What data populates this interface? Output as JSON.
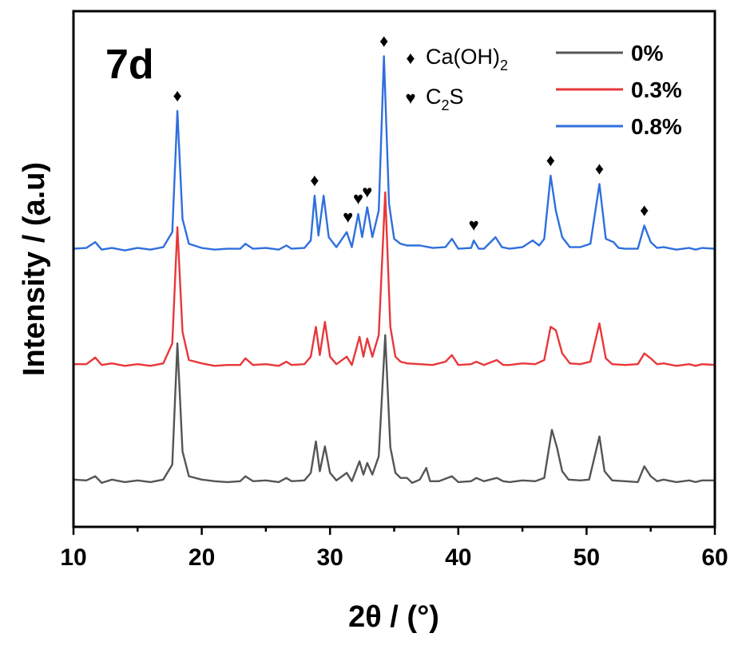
{
  "chart_data": {
    "type": "line",
    "title": "7d",
    "xlabel": "2θ / (°)",
    "ylabel": "Intensity / (a.u)",
    "xlim": [
      10,
      60
    ],
    "xticks": [
      10,
      20,
      30,
      40,
      50,
      60
    ],
    "grid": false,
    "yticks_visible": false,
    "legend_position": "top-right",
    "series": [
      {
        "name": "0%",
        "color": "#555555",
        "offset": 0,
        "points": [
          [
            10,
            6
          ],
          [
            11,
            5
          ],
          [
            11.7,
            10
          ],
          [
            12.2,
            2
          ],
          [
            13,
            6
          ],
          [
            14,
            3
          ],
          [
            15,
            5
          ],
          [
            16,
            3
          ],
          [
            17,
            6
          ],
          [
            17.7,
            24
          ],
          [
            18.1,
            170
          ],
          [
            18.5,
            40
          ],
          [
            19,
            10
          ],
          [
            20,
            6
          ],
          [
            21,
            4
          ],
          [
            22,
            3
          ],
          [
            23,
            4
          ],
          [
            23.4,
            10
          ],
          [
            24,
            4
          ],
          [
            25,
            5
          ],
          [
            26,
            3
          ],
          [
            26.6,
            8
          ],
          [
            27,
            4
          ],
          [
            28,
            5
          ],
          [
            28.5,
            14
          ],
          [
            28.9,
            52
          ],
          [
            29.2,
            16
          ],
          [
            29.6,
            46
          ],
          [
            30,
            14
          ],
          [
            30.5,
            5
          ],
          [
            31.3,
            14
          ],
          [
            31.7,
            4
          ],
          [
            32.3,
            28
          ],
          [
            32.6,
            12
          ],
          [
            32.9,
            26
          ],
          [
            33.3,
            12
          ],
          [
            33.8,
            34
          ],
          [
            34.3,
            180
          ],
          [
            34.7,
            45
          ],
          [
            35.1,
            14
          ],
          [
            35.5,
            8
          ],
          [
            36,
            8
          ],
          [
            36.4,
            2
          ],
          [
            37,
            6
          ],
          [
            37.5,
            20
          ],
          [
            37.8,
            4
          ],
          [
            38.5,
            4
          ],
          [
            39.5,
            10
          ],
          [
            40,
            3
          ],
          [
            41,
            4
          ],
          [
            41.4,
            8
          ],
          [
            42,
            4
          ],
          [
            43,
            8
          ],
          [
            43.5,
            4
          ],
          [
            44,
            3
          ],
          [
            45,
            5
          ],
          [
            46,
            4
          ],
          [
            46.7,
            8
          ],
          [
            47.3,
            66
          ],
          [
            47.7,
            44
          ],
          [
            48.1,
            16
          ],
          [
            48.6,
            6
          ],
          [
            49.5,
            5
          ],
          [
            50.2,
            6
          ],
          [
            51,
            58
          ],
          [
            51.4,
            16
          ],
          [
            52,
            5
          ],
          [
            53,
            4
          ],
          [
            54,
            3
          ],
          [
            54.5,
            22
          ],
          [
            55,
            10
          ],
          [
            55.5,
            4
          ],
          [
            56,
            6
          ],
          [
            57,
            3
          ],
          [
            58,
            5
          ],
          [
            58.5,
            3
          ],
          [
            59,
            5
          ],
          [
            60,
            5
          ]
        ]
      },
      {
        "name": "0.3%",
        "color": "#e8373a",
        "offset": 140,
        "points": [
          [
            10,
            5
          ],
          [
            11,
            5
          ],
          [
            11.7,
            13
          ],
          [
            12.2,
            4
          ],
          [
            13,
            6
          ],
          [
            14,
            3
          ],
          [
            15,
            5
          ],
          [
            16,
            3
          ],
          [
            17,
            6
          ],
          [
            17.7,
            30
          ],
          [
            18.1,
            170
          ],
          [
            18.5,
            44
          ],
          [
            19,
            10
          ],
          [
            20,
            6
          ],
          [
            21,
            3
          ],
          [
            22,
            4
          ],
          [
            23,
            4
          ],
          [
            23.4,
            12
          ],
          [
            24,
            4
          ],
          [
            25,
            5
          ],
          [
            26,
            3
          ],
          [
            26.6,
            8
          ],
          [
            27,
            4
          ],
          [
            28,
            5
          ],
          [
            28.5,
            14
          ],
          [
            28.9,
            50
          ],
          [
            29.2,
            16
          ],
          [
            29.6,
            56
          ],
          [
            30,
            14
          ],
          [
            30.5,
            5
          ],
          [
            31.3,
            14
          ],
          [
            31.7,
            4
          ],
          [
            32.3,
            38
          ],
          [
            32.6,
            14
          ],
          [
            32.9,
            36
          ],
          [
            33.3,
            14
          ],
          [
            33.8,
            40
          ],
          [
            34.3,
            212
          ],
          [
            34.7,
            50
          ],
          [
            35.1,
            14
          ],
          [
            35.5,
            8
          ],
          [
            36,
            6
          ],
          [
            37,
            5
          ],
          [
            38,
            4
          ],
          [
            39,
            8
          ],
          [
            39.5,
            16
          ],
          [
            40,
            4
          ],
          [
            41,
            5
          ],
          [
            41.4,
            8
          ],
          [
            42,
            4
          ],
          [
            43,
            10
          ],
          [
            43.5,
            4
          ],
          [
            44,
            4
          ],
          [
            45,
            6
          ],
          [
            46,
            5
          ],
          [
            46.7,
            10
          ],
          [
            47.2,
            50
          ],
          [
            47.6,
            46
          ],
          [
            48.1,
            18
          ],
          [
            48.7,
            6
          ],
          [
            49.5,
            5
          ],
          [
            50.3,
            8
          ],
          [
            51,
            54
          ],
          [
            51.5,
            12
          ],
          [
            52,
            5
          ],
          [
            53,
            4
          ],
          [
            54,
            5
          ],
          [
            54.5,
            18
          ],
          [
            55,
            12
          ],
          [
            55.5,
            5
          ],
          [
            56,
            6
          ],
          [
            57,
            3
          ],
          [
            58,
            5
          ],
          [
            58.5,
            3
          ],
          [
            59,
            5
          ],
          [
            60,
            4
          ]
        ]
      },
      {
        "name": "0.8%",
        "color": "#2f6fde",
        "offset": 280,
        "points": [
          [
            10,
            4
          ],
          [
            11,
            5
          ],
          [
            11.7,
            12
          ],
          [
            12.2,
            3
          ],
          [
            13,
            5
          ],
          [
            14,
            2
          ],
          [
            15,
            5
          ],
          [
            16,
            3
          ],
          [
            17,
            6
          ],
          [
            17.7,
            24
          ],
          [
            18.1,
            170
          ],
          [
            18.5,
            40
          ],
          [
            19,
            10
          ],
          [
            20,
            5
          ],
          [
            21,
            3
          ],
          [
            22,
            4
          ],
          [
            23,
            4
          ],
          [
            23.4,
            10
          ],
          [
            24,
            4
          ],
          [
            25,
            5
          ],
          [
            26,
            3
          ],
          [
            26.6,
            8
          ],
          [
            27,
            4
          ],
          [
            28,
            5
          ],
          [
            28.5,
            14
          ],
          [
            28.8,
            68
          ],
          [
            29.1,
            20
          ],
          [
            29.5,
            68
          ],
          [
            29.9,
            18
          ],
          [
            30.5,
            6
          ],
          [
            31.3,
            24
          ],
          [
            31.7,
            6
          ],
          [
            32.2,
            46
          ],
          [
            32.5,
            18
          ],
          [
            32.9,
            54
          ],
          [
            33.3,
            18
          ],
          [
            33.8,
            50
          ],
          [
            34.2,
            236
          ],
          [
            34.6,
            58
          ],
          [
            35,
            16
          ],
          [
            35.5,
            10
          ],
          [
            36,
            8
          ],
          [
            37,
            8
          ],
          [
            38,
            5
          ],
          [
            39,
            6
          ],
          [
            39.5,
            16
          ],
          [
            40,
            4
          ],
          [
            41,
            5
          ],
          [
            41.2,
            14
          ],
          [
            41.6,
            4
          ],
          [
            42,
            4
          ],
          [
            42.9,
            18
          ],
          [
            43.4,
            6
          ],
          [
            44,
            4
          ],
          [
            45,
            6
          ],
          [
            45.8,
            14
          ],
          [
            46.3,
            8
          ],
          [
            46.7,
            16
          ],
          [
            47.2,
            92
          ],
          [
            47.6,
            50
          ],
          [
            48.1,
            18
          ],
          [
            48.7,
            6
          ],
          [
            49.5,
            6
          ],
          [
            50.3,
            10
          ],
          [
            51,
            82
          ],
          [
            51.5,
            16
          ],
          [
            52.1,
            12
          ],
          [
            52.5,
            5
          ],
          [
            53,
            4
          ],
          [
            54,
            4
          ],
          [
            54.5,
            32
          ],
          [
            55,
            12
          ],
          [
            55.5,
            5
          ],
          [
            56,
            6
          ],
          [
            57,
            3
          ],
          [
            58,
            5
          ],
          [
            58.5,
            3
          ],
          [
            59,
            5
          ],
          [
            60,
            4
          ]
        ]
      }
    ],
    "marker_legend": [
      {
        "symbol": "♦",
        "label_main": "Ca(OH)",
        "label_sub": "2",
        "label_tail": ""
      },
      {
        "symbol": "♥",
        "label_main": "C",
        "label_sub": "2",
        "label_tail": "S"
      }
    ],
    "peak_markers": [
      {
        "x": 18.1,
        "symbol": "♦"
      },
      {
        "x": 28.8,
        "symbol": "♦"
      },
      {
        "x": 31.4,
        "symbol": "♥"
      },
      {
        "x": 32.2,
        "symbol": "♥"
      },
      {
        "x": 32.9,
        "symbol": "♥"
      },
      {
        "x": 34.2,
        "symbol": "♦"
      },
      {
        "x": 41.2,
        "symbol": "♥"
      },
      {
        "x": 47.2,
        "symbol": "♦"
      },
      {
        "x": 51.0,
        "symbol": "♦"
      },
      {
        "x": 54.5,
        "symbol": "♦"
      }
    ]
  }
}
